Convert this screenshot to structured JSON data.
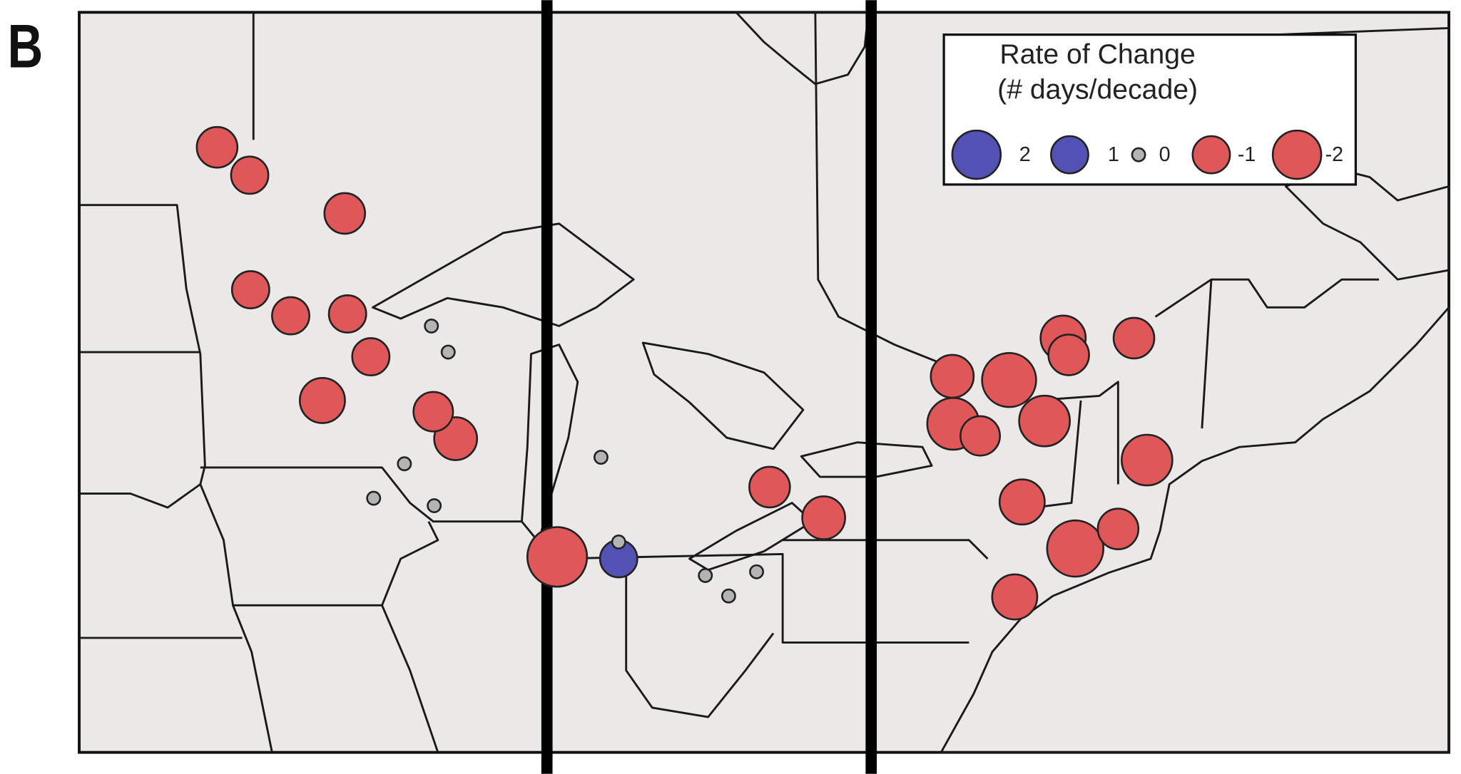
{
  "map": {
    "panel_label": "B",
    "legend": {
      "title": [
        "Rate of Change",
        "(# days/decade)"
      ],
      "values": [
        2,
        1,
        0,
        -1,
        -2
      ]
    },
    "colors": {
      "positive": "#5252b5",
      "zero": "#b4b4b4",
      "negative": "#e0575a"
    },
    "sites": {
      "values": [
        -1.3,
        -1,
        -1.3,
        -1,
        -1,
        -1,
        -1,
        -1.7,
        -1.2,
        -1.5,
        0,
        0,
        0,
        0,
        0,
        0,
        0,
        -3,
        1,
        0,
        0,
        0,
        -1.3,
        -1.5,
        -1.5,
        -2.5,
        -2.3,
        -1.2,
        -2.2,
        -1.7,
        -1.3,
        -1.3,
        -2.2,
        -1.7,
        -2.7,
        -1.3,
        -1.7
      ]
    }
  }
}
